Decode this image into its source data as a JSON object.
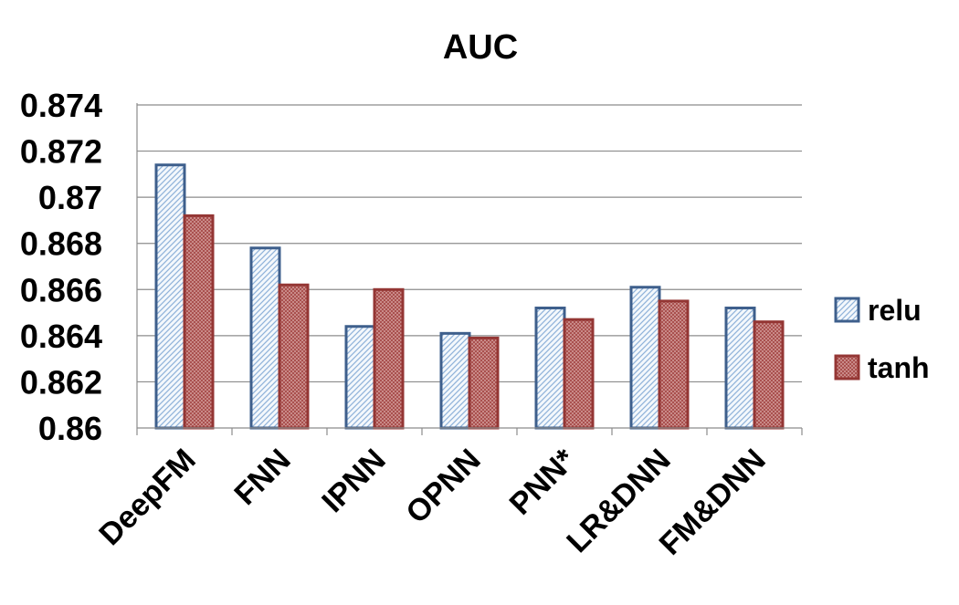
{
  "chart_data": {
    "type": "bar",
    "title": "AUC",
    "xlabel": "",
    "ylabel": "",
    "categories": [
      "DeepFM",
      "FNN",
      "IPNN",
      "OPNN",
      "PNN*",
      "LR&DNN",
      "FM&DNN"
    ],
    "series": [
      {
        "name": "relu",
        "values": [
          0.8714,
          0.8678,
          0.8644,
          0.8641,
          0.8652,
          0.8661,
          0.8652
        ],
        "color": "#3e5f8c",
        "fill": "#ddeaf6"
      },
      {
        "name": "tanh",
        "values": [
          0.8692,
          0.8662,
          0.866,
          0.8639,
          0.8647,
          0.8655,
          0.8646
        ],
        "color": "#943634",
        "fill": "#c07674"
      }
    ],
    "ylim": [
      0.86,
      0.874
    ],
    "yticks": [
      {
        "value": 0.86,
        "label": "0.86"
      },
      {
        "value": 0.862,
        "label": "0.862"
      },
      {
        "value": 0.864,
        "label": "0.864"
      },
      {
        "value": 0.866,
        "label": "0.866"
      },
      {
        "value": 0.868,
        "label": "0.868"
      },
      {
        "value": 0.87,
        "label": "0.87"
      },
      {
        "value": 0.872,
        "label": "0.872"
      },
      {
        "value": 0.874,
        "label": "0.874"
      }
    ],
    "grid": true,
    "legend_position": "right"
  }
}
